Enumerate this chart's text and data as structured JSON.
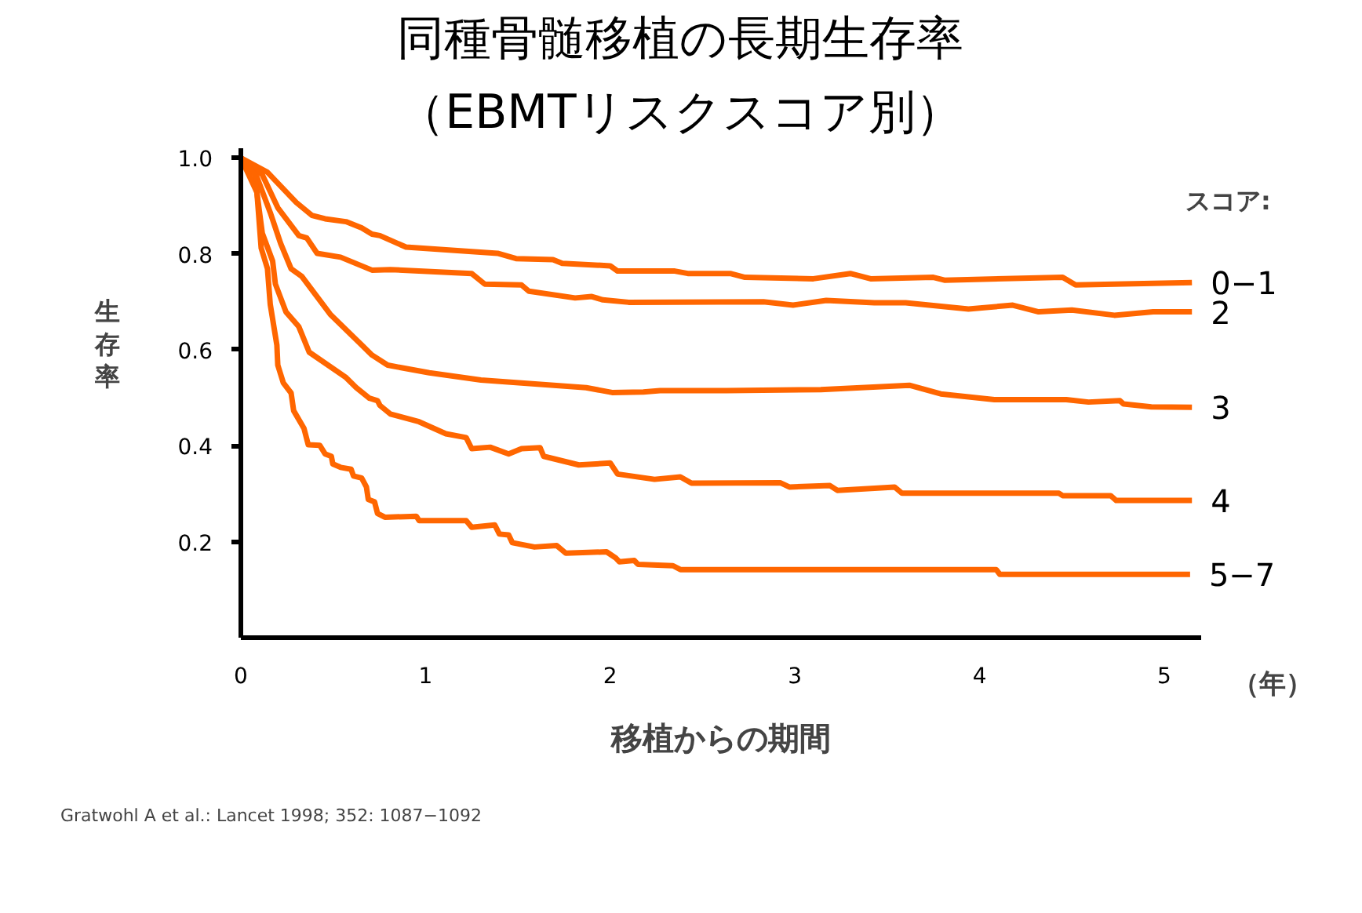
{
  "chart_data": {
    "type": "line",
    "title": "同種骨髄移植の長期生存率",
    "subtitle": "（EBMTリスクスコア別）",
    "xlabel": "移植からの期間",
    "ylabel": "生存率",
    "legend_title": "スコア:",
    "annotations": [
      "（年）",
      "Gratwohl A et al.: Lancet 1998; 352: 1087−1092"
    ],
    "xlim": [
      0,
      5.2
    ],
    "ylim": [
      0,
      1.02
    ],
    "xticks": [
      0,
      1,
      2,
      3,
      4,
      5
    ],
    "yticks": [
      0.2,
      0.4,
      0.6,
      0.8,
      {
        "value": 1,
        "label": "1.0"
      }
    ],
    "grid": false,
    "legend": false,
    "marker": "none",
    "line_style": "solid",
    "series": [
      {
        "name": "0−1",
        "color": "#ff6600",
        "x": [
          0,
          0.144,
          0.3,
          0.385,
          0.456,
          0.569,
          0.654,
          0.71,
          0.753,
          0.894,
          1.39,
          1.49,
          1.69,
          1.74,
          2.0,
          2.04,
          2.35,
          2.42,
          2.65,
          2.73,
          3.1,
          3.3,
          3.41,
          3.75,
          3.81,
          4.45,
          4.52,
          5.15
        ],
        "values": [
          1.0,
          0.97,
          0.907,
          0.88,
          0.873,
          0.867,
          0.854,
          0.841,
          0.838,
          0.814,
          0.801,
          0.79,
          0.788,
          0.78,
          0.775,
          0.764,
          0.764,
          0.759,
          0.759,
          0.751,
          0.748,
          0.759,
          0.748,
          0.751,
          0.745,
          0.751,
          0.735,
          0.74
        ]
      },
      {
        "name": "2",
        "color": "#ff6600",
        "x": [
          0,
          0.116,
          0.2,
          0.314,
          0.357,
          0.413,
          0.54,
          0.71,
          0.81,
          1.25,
          1.32,
          1.52,
          1.56,
          1.81,
          1.9,
          1.96,
          2.1,
          2.83,
          2.99,
          3.17,
          3.43,
          3.6,
          3.94,
          4.18,
          4.32,
          4.5,
          4.73,
          4.94,
          5.15
        ],
        "values": [
          1.0,
          0.965,
          0.896,
          0.838,
          0.833,
          0.801,
          0.793,
          0.766,
          0.767,
          0.759,
          0.737,
          0.735,
          0.722,
          0.708,
          0.711,
          0.704,
          0.699,
          0.7,
          0.693,
          0.703,
          0.698,
          0.698,
          0.685,
          0.693,
          0.679,
          0.683,
          0.672,
          0.679,
          0.679
        ]
      },
      {
        "name": "3",
        "color": "#ff6600",
        "x": [
          0,
          0.087,
          0.159,
          0.215,
          0.272,
          0.33,
          0.484,
          0.654,
          0.71,
          0.795,
          1.02,
          1.3,
          1.87,
          2.01,
          2.18,
          2.27,
          2.63,
          3.14,
          3.62,
          3.79,
          4.08,
          4.47,
          4.59,
          4.76,
          4.78,
          4.93,
          5.15
        ],
        "values": [
          1.0,
          0.96,
          0.886,
          0.822,
          0.769,
          0.753,
          0.674,
          0.61,
          0.589,
          0.568,
          0.552,
          0.537,
          0.521,
          0.511,
          0.512,
          0.515,
          0.515,
          0.517,
          0.526,
          0.508,
          0.496,
          0.496,
          0.491,
          0.494,
          0.487,
          0.481,
          0.48
        ]
      },
      {
        "name": "4",
        "color": "#ff6600",
        "x": [
          0,
          0.074,
          0.116,
          0.172,
          0.187,
          0.244,
          0.314,
          0.37,
          0.57,
          0.625,
          0.696,
          0.74,
          0.753,
          0.81,
          0.965,
          1.11,
          1.22,
          1.25,
          1.35,
          1.45,
          1.52,
          1.62,
          1.64,
          1.83,
          2.0,
          2.04,
          2.24,
          2.38,
          2.44,
          2.92,
          2.97,
          3.19,
          3.23,
          3.54,
          3.58,
          4.43,
          4.45,
          4.71,
          4.74,
          5.15
        ],
        "values": [
          1.0,
          0.965,
          0.843,
          0.785,
          0.737,
          0.679,
          0.648,
          0.595,
          0.542,
          0.521,
          0.499,
          0.494,
          0.484,
          0.466,
          0.45,
          0.425,
          0.417,
          0.394,
          0.397,
          0.383,
          0.394,
          0.396,
          0.378,
          0.36,
          0.364,
          0.341,
          0.33,
          0.335,
          0.322,
          0.323,
          0.314,
          0.317,
          0.307,
          0.314,
          0.301,
          0.301,
          0.296,
          0.296,
          0.286,
          0.286
        ]
      },
      {
        "name": "5−7",
        "color": "#ff6600",
        "x": [
          0,
          0.087,
          0.11,
          0.144,
          0.159,
          0.195,
          0.2,
          0.23,
          0.272,
          0.286,
          0.342,
          0.365,
          0.427,
          0.456,
          0.49,
          0.498,
          0.54,
          0.597,
          0.61,
          0.654,
          0.68,
          0.69,
          0.724,
          0.74,
          0.78,
          0.95,
          0.965,
          1.22,
          1.25,
          1.375,
          1.4,
          1.45,
          1.47,
          1.59,
          1.71,
          1.76,
          1.98,
          2.03,
          2.05,
          2.13,
          2.15,
          2.34,
          2.38,
          4.09,
          4.11,
          5.14
        ],
        "values": [
          1.0,
          0.928,
          0.812,
          0.769,
          0.695,
          0.61,
          0.568,
          0.531,
          0.51,
          0.473,
          0.436,
          0.402,
          0.401,
          0.383,
          0.378,
          0.362,
          0.355,
          0.351,
          0.337,
          0.333,
          0.314,
          0.288,
          0.283,
          0.259,
          0.251,
          0.253,
          0.244,
          0.244,
          0.23,
          0.235,
          0.216,
          0.214,
          0.198,
          0.189,
          0.192,
          0.176,
          0.179,
          0.166,
          0.158,
          0.161,
          0.153,
          0.15,
          0.142,
          0.142,
          0.132,
          0.132
        ]
      }
    ]
  }
}
